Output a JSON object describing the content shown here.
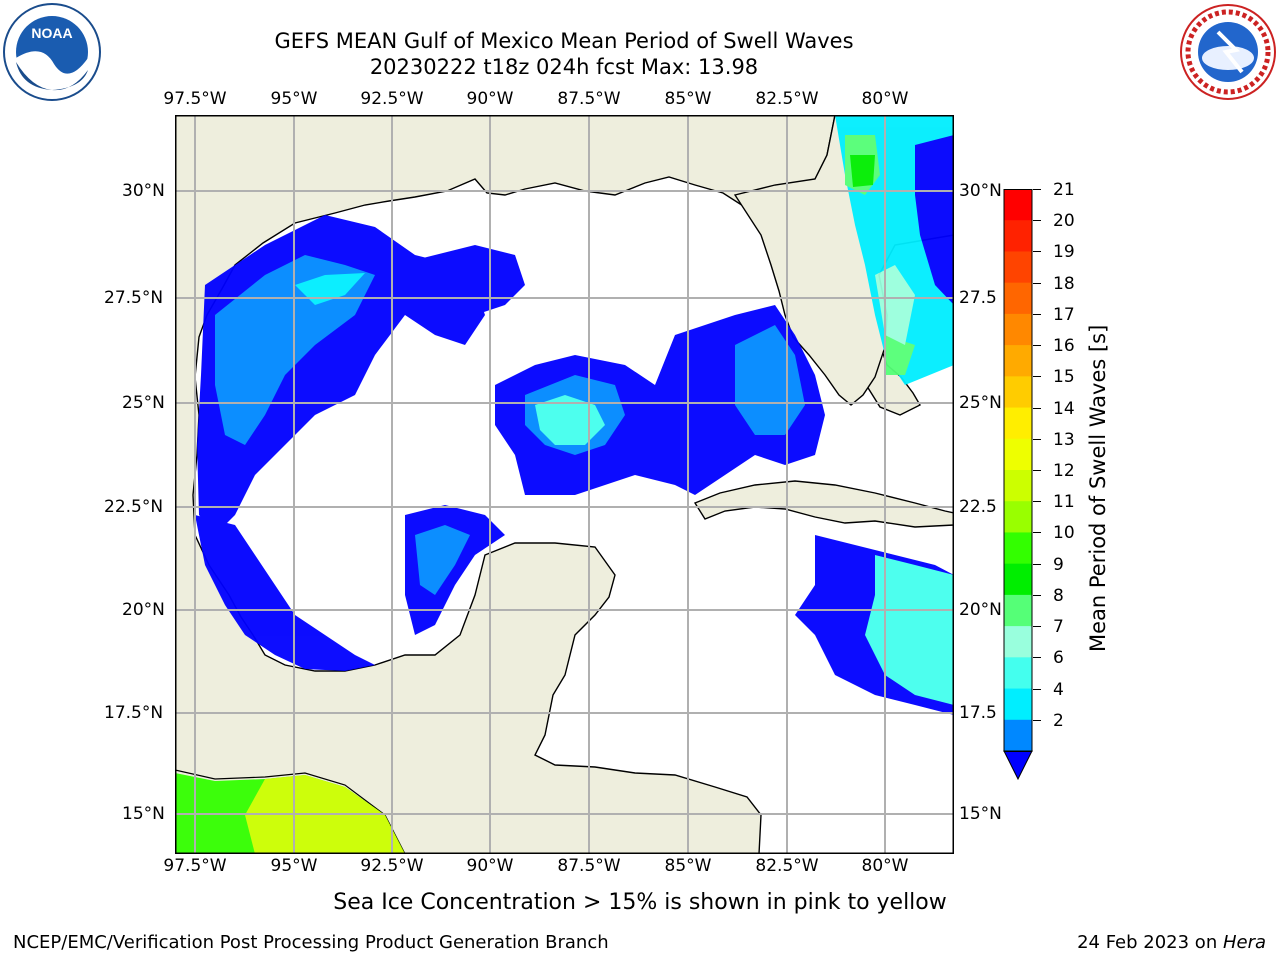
{
  "title": {
    "line1": "GEFS MEAN Gulf of Mexico Mean Period of Swell Waves",
    "line2": "20230222 t18z 024h fcst   Max: 13.98"
  },
  "logos": {
    "left": {
      "icon": "noaa-logo-icon",
      "text": "NOAA"
    },
    "right": {
      "icon": "nws-logo-icon",
      "text": "NATIONAL WEATHER SERVICE"
    }
  },
  "map": {
    "lon_labels": [
      "97.5°W",
      "95°W",
      "92.5°W",
      "90°W",
      "87.5°W",
      "85°W",
      "82.5°W",
      "80°W"
    ],
    "lat_labels_left": [
      "30°N",
      "27.5°N",
      "25°N",
      "22.5°N",
      "20°N",
      "17.5°N",
      "15°N"
    ],
    "lat_labels_right": [
      "30°N",
      "27.5",
      "25°N",
      "22.5",
      "20°N",
      "17.5",
      "15°N"
    ],
    "land_color": "#eeeedd",
    "grid_color": "#b0b0b0"
  },
  "colorbar": {
    "title": "Mean Period of Swell Waves [s]",
    "ticks": [
      "21",
      "20",
      "19",
      "18",
      "17",
      "16",
      "15",
      "14",
      "13",
      "12",
      "11",
      "10",
      "9",
      "8",
      "7",
      "6",
      "4",
      "2"
    ],
    "colors": [
      "#ff0000",
      "#ff2200",
      "#ff4400",
      "#ff6600",
      "#ff8800",
      "#ffaa00",
      "#ffcc00",
      "#ffee00",
      "#eeff00",
      "#ccff00",
      "#99ff00",
      "#33ff00",
      "#00ee00",
      "#55ff77",
      "#99ffdd",
      "#44ffee",
      "#00eeff",
      "#0088ff",
      "#0000ff"
    ]
  },
  "note": "Sea Ice Concentration > 15% is shown in pink to yellow",
  "footer": {
    "left": "NCEP/EMC/Verification Post Processing Product Generation Branch",
    "right_date": "24 Feb 2023 on ",
    "right_host": "Hera"
  }
}
